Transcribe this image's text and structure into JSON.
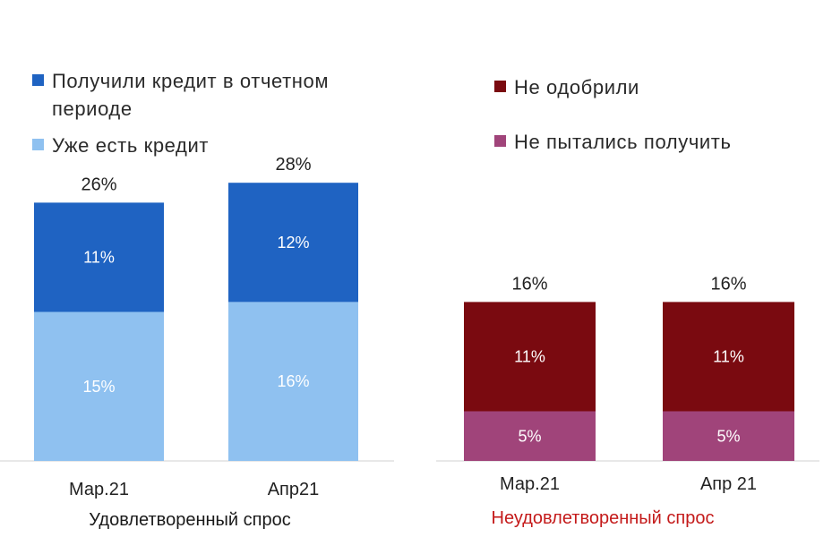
{
  "chart_data": [
    {
      "type": "bar",
      "stacked": true,
      "title": "Удовлетворенный спрос",
      "categories": [
        "Мар.21",
        "Апр21"
      ],
      "series": [
        {
          "name": "Уже есть кредит",
          "values": [
            15,
            16
          ],
          "labels": [
            "15%",
            "16%"
          ],
          "color": "#8fc1f0",
          "label_color": "#ffffff"
        },
        {
          "name": "Получили кредит в отчетном периоде",
          "values": [
            11,
            12
          ],
          "labels": [
            "11%",
            "12%"
          ],
          "color": "#1f63c2",
          "label_color": "#ffffff"
        }
      ],
      "totals": [
        "26%",
        "28%"
      ],
      "legend": {
        "position": "top-left",
        "items": [
          "Получили кредит в отчетном периоде",
          "Уже есть кредит"
        ],
        "item_lines": [
          [
            "Получили кредит в отчетном",
            "периоде"
          ],
          [
            "Уже есть кредит"
          ]
        ],
        "colors": [
          "#1f63c2",
          "#8fc1f0"
        ]
      },
      "title_color": "#1a1a1a",
      "ylim": [
        0,
        30
      ]
    },
    {
      "type": "bar",
      "stacked": true,
      "title": "Неудовлетворенный спрос",
      "categories": [
        "Мар.21",
        "Апр 21"
      ],
      "series": [
        {
          "name": "Не пытались получить",
          "values": [
            5,
            5
          ],
          "labels": [
            "5%",
            "5%"
          ],
          "color": "#a0447a",
          "label_color": "#ffffff"
        },
        {
          "name": "Не одобрили",
          "values": [
            11,
            11
          ],
          "labels": [
            "11%",
            "11%"
          ],
          "color": "#7a0a10",
          "label_color": "#ffffff"
        }
      ],
      "totals": [
        "16%",
        "16%"
      ],
      "legend": {
        "position": "top-right",
        "items": [
          "Не одобрили",
          "Не пытались получить"
        ],
        "item_lines": [
          [
            "Не одобрили"
          ],
          [
            "Не пытались получить"
          ]
        ],
        "colors": [
          "#7a0a10",
          "#a0447a"
        ]
      },
      "title_color": "#c41a1a",
      "ylim": [
        0,
        30
      ]
    }
  ]
}
